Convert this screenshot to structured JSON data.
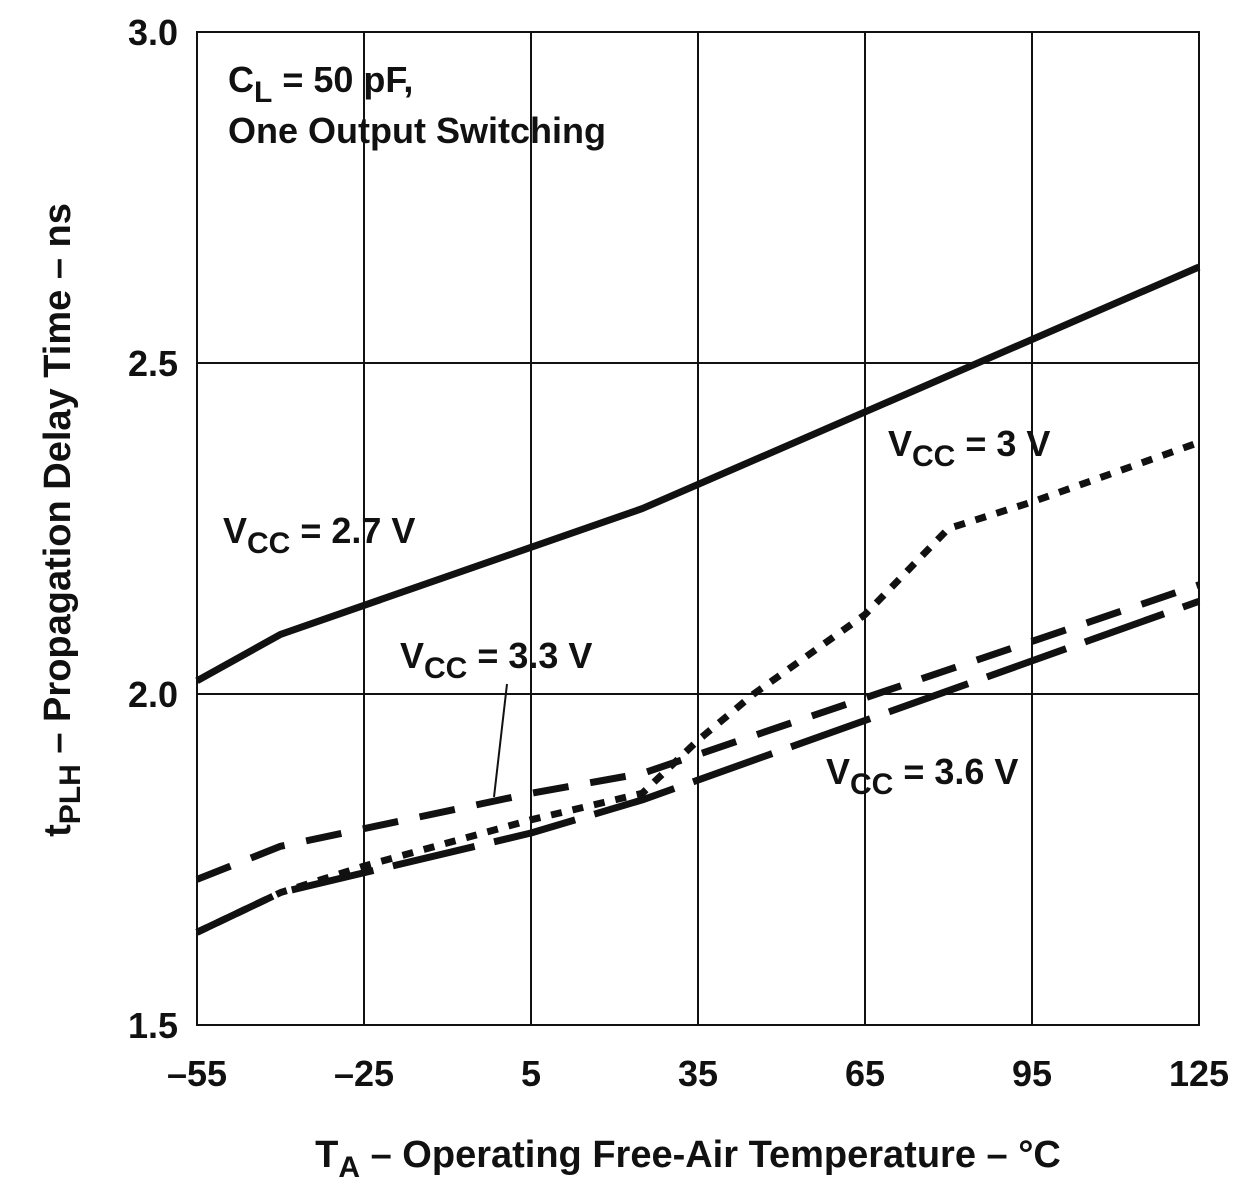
{
  "chart_data": {
    "type": "line",
    "xlabel": {
      "main": "T",
      "sub": "A",
      "rest": " – Operating Free-Air Temperature – °C"
    },
    "ylabel": {
      "main": "t",
      "sub": "PLH",
      "rest": " – Propagation Delay Time – ns"
    },
    "xlim": [
      -55,
      125
    ],
    "ylim": [
      1.5,
      3.0
    ],
    "x_ticks": [
      -55,
      -25,
      5,
      35,
      65,
      95,
      125
    ],
    "x_tick_labels": [
      "–55",
      "–25",
      "5",
      "35",
      "65",
      "95",
      "125"
    ],
    "y_ticks": [
      1.5,
      2.0,
      2.5,
      3.0
    ],
    "y_tick_labels": [
      "1.5",
      "2.0",
      "2.5",
      "3.0"
    ],
    "grid": true,
    "annotation": {
      "line1": {
        "main": "C",
        "sub": "L",
        "rest": " = 50 pF,"
      },
      "line2": "One Output Switching"
    },
    "series": [
      {
        "name": "VCC = 2.7 V",
        "label": {
          "main": "V",
          "sub": "CC",
          "rest": " = 2.7 V"
        },
        "style": "solid",
        "x": [
          -55,
          -40,
          25,
          125
        ],
        "y": [
          2.02,
          2.09,
          2.28,
          2.645
        ]
      },
      {
        "name": "VCC = 3 V",
        "label": {
          "main": "V",
          "sub": "CC",
          "rest": " = 3 V"
        },
        "style": "dotted",
        "x": [
          -55,
          -40,
          -25,
          5,
          25,
          35,
          45,
          65,
          80,
          95,
          125
        ],
        "y": [
          1.64,
          1.7,
          1.74,
          1.81,
          1.85,
          1.93,
          2.0,
          2.12,
          2.25,
          2.29,
          2.38
        ]
      },
      {
        "name": "VCC = 3.3 V",
        "label": {
          "main": "V",
          "sub": "CC",
          "rest": " = 3.3 V"
        },
        "style": "dashed",
        "x": [
          -55,
          -40,
          5,
          25,
          125
        ],
        "y": [
          1.72,
          1.77,
          1.85,
          1.88,
          2.165
        ]
      },
      {
        "name": "VCC = 3.6 V",
        "label": {
          "main": "V",
          "sub": "CC",
          "rest": " = 3.6 V"
        },
        "style": "long-dash",
        "x": [
          -55,
          -40,
          5,
          25,
          125
        ],
        "y": [
          1.64,
          1.7,
          1.79,
          1.84,
          2.14
        ]
      }
    ]
  }
}
